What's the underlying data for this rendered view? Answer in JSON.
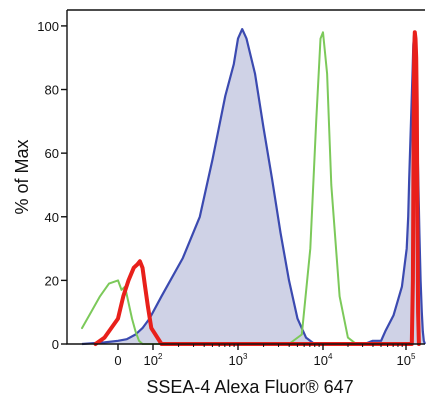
{
  "chart_data": {
    "type": "area",
    "title": "",
    "xlabel": "SSEA-4 Alexa Fluor® 647",
    "ylabel": "% of Max",
    "ylim": [
      0,
      105
    ],
    "x_scale": "biexponential (log10)",
    "xlim": [
      -1,
      5.3
    ],
    "grid": false,
    "legend": "none",
    "x_ticks": [
      {
        "value": 0,
        "base": "0",
        "exp": ""
      },
      {
        "value": 2,
        "base": "10",
        "exp": "2"
      },
      {
        "value": 3,
        "base": "10",
        "exp": "3"
      },
      {
        "value": 4,
        "base": "10",
        "exp": "4"
      },
      {
        "value": 5,
        "base": "10",
        "exp": "5"
      }
    ],
    "y_ticks": [
      0,
      20,
      40,
      60,
      80,
      100
    ],
    "series": [
      {
        "color": "#3b4ab0",
        "fill": "#cfd2e6",
        "style": "filled-outline",
        "points": [
          [
            -0.8,
            0
          ],
          [
            -0.3,
            0.5
          ],
          [
            0,
            1
          ],
          [
            0.5,
            1.5
          ],
          [
            1.0,
            3
          ],
          [
            1.4,
            5
          ],
          [
            1.8,
            8
          ],
          [
            2.1,
            15
          ],
          [
            2.35,
            27
          ],
          [
            2.55,
            40
          ],
          [
            2.7,
            58
          ],
          [
            2.85,
            78
          ],
          [
            2.95,
            88
          ],
          [
            3.0,
            96
          ],
          [
            3.05,
            99
          ],
          [
            3.1,
            96
          ],
          [
            3.2,
            85
          ],
          [
            3.3,
            68
          ],
          [
            3.4,
            52
          ],
          [
            3.5,
            35
          ],
          [
            3.6,
            20
          ],
          [
            3.7,
            8
          ],
          [
            3.8,
            2
          ],
          [
            3.9,
            0
          ],
          [
            4.5,
            0
          ],
          [
            4.6,
            1
          ],
          [
            4.7,
            1
          ],
          [
            4.75,
            4
          ],
          [
            4.85,
            9
          ],
          [
            4.95,
            18
          ],
          [
            5.05,
            30
          ],
          [
            5.15,
            40
          ],
          [
            5.22,
            52
          ],
          [
            5.3,
            64
          ],
          [
            5.38,
            76
          ],
          [
            5.45,
            86
          ],
          [
            5.5,
            94
          ],
          [
            5.55,
            97
          ],
          [
            5.6,
            95
          ],
          [
            5.65,
            88
          ],
          [
            5.7,
            78
          ],
          [
            5.78,
            64
          ],
          [
            5.85,
            50
          ],
          [
            5.92,
            35
          ],
          [
            6.0,
            20
          ],
          [
            6.08,
            10
          ],
          [
            6.15,
            4
          ],
          [
            6.22,
            1
          ],
          [
            6.3,
            0
          ]
        ]
      },
      {
        "color": "#7cc95a",
        "style": "line",
        "points": [
          [
            -0.8,
            5
          ],
          [
            -0.6,
            10
          ],
          [
            -0.4,
            15
          ],
          [
            -0.2,
            19
          ],
          [
            0,
            20
          ],
          [
            0.2,
            17
          ],
          [
            0.4,
            18
          ],
          [
            0.6,
            13
          ],
          [
            0.8,
            8
          ],
          [
            1.0,
            4
          ],
          [
            1.2,
            1
          ],
          [
            1.4,
            0
          ],
          [
            3.6,
            0
          ],
          [
            3.75,
            3
          ],
          [
            3.85,
            30
          ],
          [
            3.92,
            70
          ],
          [
            3.97,
            96
          ],
          [
            4.0,
            98
          ],
          [
            4.05,
            85
          ],
          [
            4.1,
            50
          ],
          [
            4.2,
            15
          ],
          [
            4.3,
            2
          ],
          [
            4.4,
            0
          ]
        ]
      },
      {
        "color": "#e8201b",
        "style": "thick-line",
        "points": [
          [
            -0.5,
            0
          ],
          [
            -0.3,
            2
          ],
          [
            0,
            8
          ],
          [
            0.3,
            15
          ],
          [
            0.6,
            20
          ],
          [
            0.9,
            24
          ],
          [
            1.1,
            25
          ],
          [
            1.25,
            26
          ],
          [
            1.4,
            24
          ],
          [
            1.55,
            18
          ],
          [
            1.7,
            12
          ],
          [
            1.9,
            5
          ],
          [
            2.1,
            0
          ],
          [
            5.4,
            0
          ],
          [
            5.47,
            20
          ],
          [
            5.52,
            65
          ],
          [
            5.56,
            92
          ],
          [
            5.6,
            98
          ],
          [
            5.65,
            96
          ],
          [
            5.7,
            90
          ],
          [
            5.74,
            75
          ],
          [
            5.78,
            40
          ],
          [
            5.83,
            10
          ],
          [
            5.88,
            0
          ]
        ]
      }
    ]
  }
}
